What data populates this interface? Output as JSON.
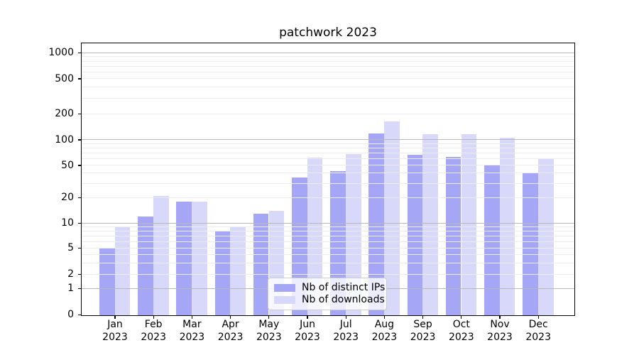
{
  "chart_data": {
    "type": "bar",
    "title": "patchwork 2023",
    "categories": [
      "Jan 2023",
      "Feb 2023",
      "Mar 2023",
      "Apr 2023",
      "May 2023",
      "Jun 2023",
      "Jul 2023",
      "Aug 2023",
      "Sep 2023",
      "Oct 2023",
      "Nov 2023",
      "Dec 2023"
    ],
    "series": [
      {
        "name": "Nb of distinct IPs",
        "color": "#a6a6f7",
        "values": [
          5,
          12,
          18,
          8,
          13,
          36,
          43,
          120,
          67,
          63,
          50,
          40
        ]
      },
      {
        "name": "Nb of downloads",
        "color": "#d8d8fa",
        "values": [
          9,
          21,
          18,
          9,
          14,
          62,
          68,
          166,
          118,
          117,
          106,
          60
        ]
      }
    ],
    "xlabel": "",
    "ylabel": "",
    "yscale": "symlog",
    "y_ticks": [
      0,
      1,
      2,
      5,
      10,
      20,
      50,
      100,
      200,
      500,
      1000
    ],
    "ylim": [
      0,
      1000
    ],
    "grid": true,
    "legend": {
      "labels": [
        "Nb of distinct IPs",
        "Nb of downloads"
      ],
      "position": "lower center (inside plot)"
    }
  }
}
